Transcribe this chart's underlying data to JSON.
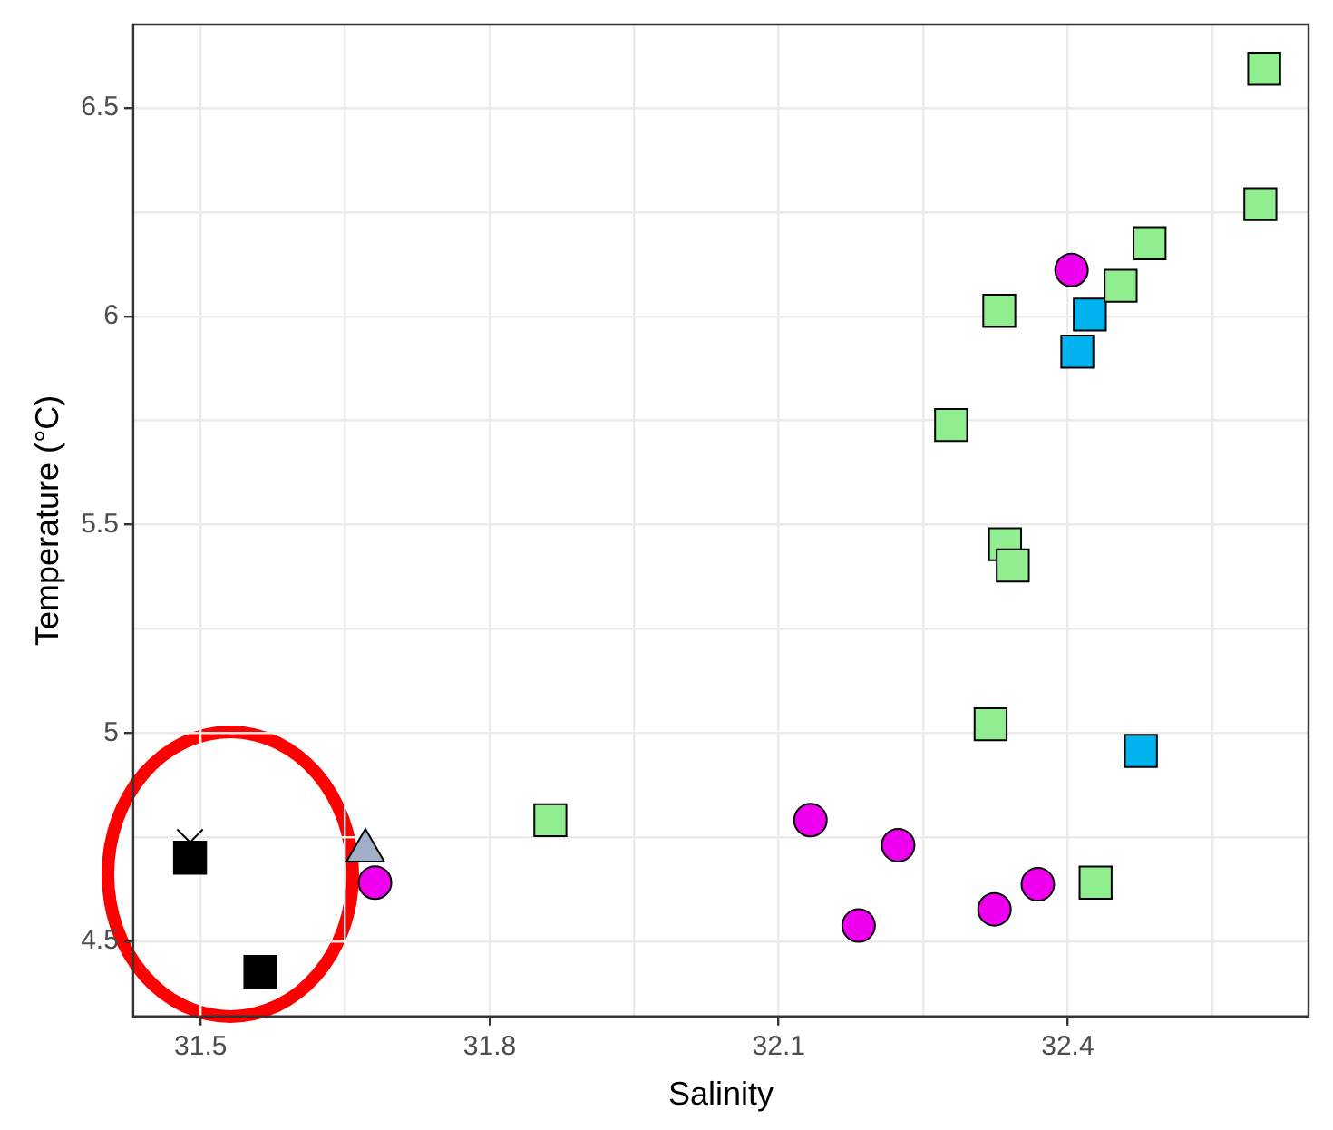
{
  "chart_data": {
    "type": "scatter",
    "xlabel": "Salinity",
    "ylabel": "Temperature (°C)",
    "xlim": [
      31.43,
      32.65
    ],
    "ylim": [
      4.32,
      6.7
    ],
    "xticks": [
      31.5,
      {
        "value": 31.65,
        "label": null
      },
      31.8,
      {
        "value": 31.95,
        "label": null
      },
      32.1,
      {
        "value": 32.25,
        "label": null
      },
      32.4,
      {
        "value": 32.55,
        "label": null
      }
    ],
    "yticks": [
      4.5,
      {
        "value": 4.75,
        "label": null
      },
      5.0,
      {
        "value": 5.25,
        "label": null
      },
      5.5,
      {
        "value": 5.75,
        "label": null
      },
      6.0,
      {
        "value": 6.25,
        "label": null
      },
      6.5
    ],
    "grid": true,
    "legend": false,
    "series": [
      {
        "color": "#90ee90",
        "marker": "square",
        "x": [
          32.604,
          32.6,
          32.485,
          32.455,
          32.329,
          32.279,
          32.335,
          32.343,
          32.32,
          32.429,
          31.863
        ],
        "values": [
          6.594,
          6.269,
          6.175,
          6.073,
          6.013,
          5.739,
          5.453,
          5.402,
          5.021,
          4.641,
          4.791
        ]
      },
      {
        "color": "#00b2ee",
        "marker": "square",
        "x": [
          32.423,
          32.41,
          32.476
        ],
        "values": [
          6.004,
          5.915,
          4.957
        ]
      },
      {
        "color": "#ee00ee",
        "marker": "circle",
        "x": [
          32.404,
          32.133,
          32.224,
          32.183,
          32.324,
          32.369,
          31.681
        ],
        "values": [
          6.111,
          4.791,
          4.731,
          4.538,
          4.577,
          4.637,
          4.641
        ]
      },
      {
        "color": "#9fb0c8",
        "marker": "triangle",
        "x": [
          31.671
        ],
        "values": [
          4.718
        ]
      },
      {
        "color": "#000000",
        "marker": "square",
        "x": [
          31.489,
          31.562
        ],
        "values": [
          4.701,
          4.427
        ]
      },
      {
        "color": "#000000",
        "marker": "cross",
        "x": [
          31.489
        ],
        "values": [
          4.738
        ]
      }
    ]
  }
}
